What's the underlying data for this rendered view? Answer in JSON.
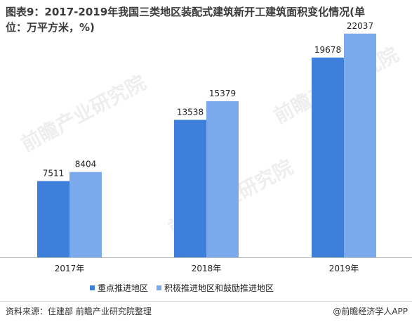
{
  "title": "图表9：2017-2019年我国三类地区装配式建筑新开工建筑面积变化情况(单位：万平方米，%)",
  "source": "资料来源：住建部   前瞻产业研究院整理",
  "brand": "@前瞻经济学人APP",
  "watermark_text": "前瞻产业研究院",
  "colors": {
    "series1": "#3f7fdc",
    "series2": "#7aaaeb",
    "axis": "#bbbbbb"
  },
  "chart_data": {
    "type": "bar",
    "categories": [
      "2017年",
      "2018年",
      "2019年"
    ],
    "series": [
      {
        "name": "重点推进地区",
        "values": [
          7511,
          13538,
          19678
        ]
      },
      {
        "name": "积极推进地区和鼓励推进地区",
        "values": [
          8404,
          15379,
          22037
        ]
      }
    ],
    "ylim": [
      0,
      25000
    ],
    "grid": false,
    "legend_position": "bottom"
  }
}
